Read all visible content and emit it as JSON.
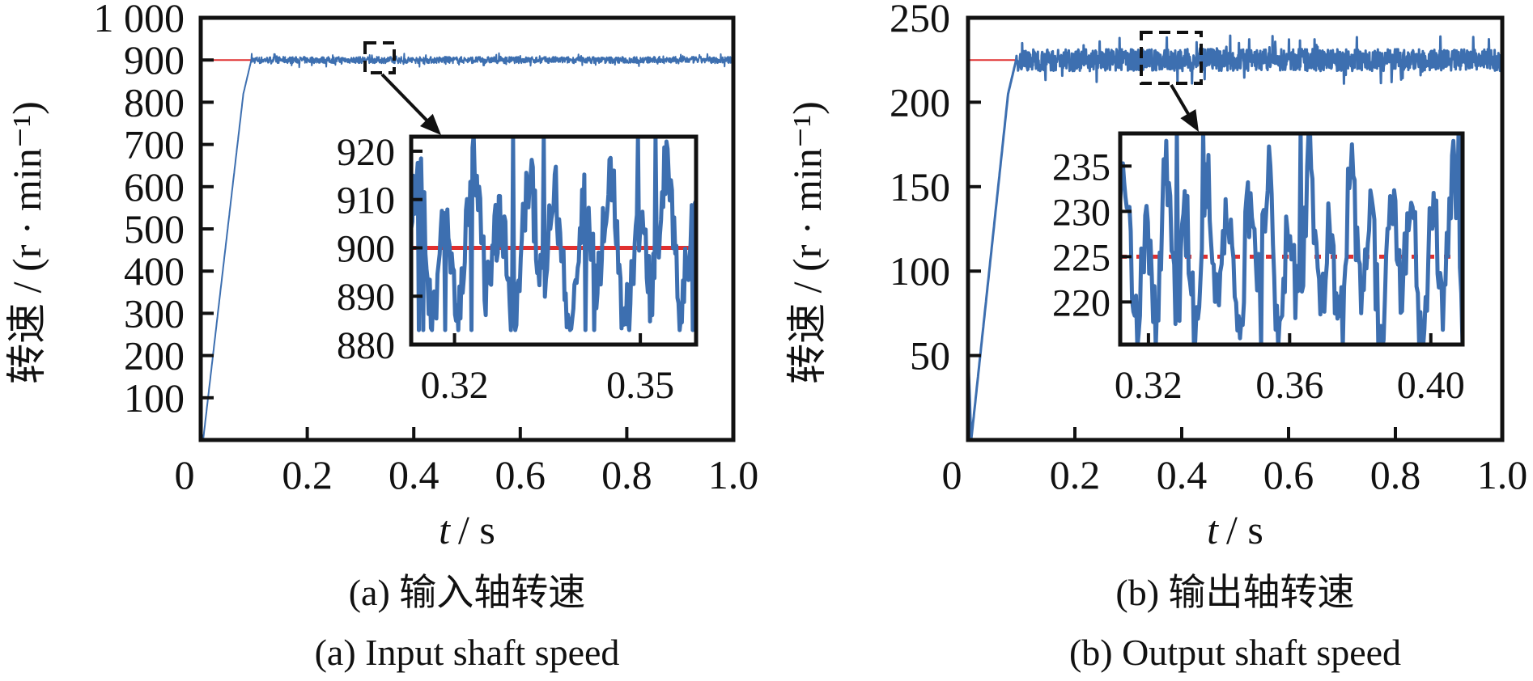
{
  "chart_data": [
    {
      "type": "line",
      "panel": "a",
      "xlabel_var": "t",
      "xlabel_unit": "/ s",
      "ylabel": "转速 / (r · min⁻¹)",
      "caption_cn": "(a)  输入轴转速",
      "caption_en": "(a)  Input shaft speed",
      "xlim": [
        0,
        1.0
      ],
      "ylim": [
        0,
        1000
      ],
      "xticks": [
        0,
        0.2,
        0.4,
        0.6,
        0.8,
        1.0
      ],
      "xtick_labels": [
        "0",
        "0.2",
        "0.4",
        "0.6",
        "0.8",
        "1.0"
      ],
      "yticks": [
        100,
        200,
        300,
        400,
        500,
        600,
        700,
        800,
        900,
        1000
      ],
      "ytick_labels": [
        "100",
        "200",
        "300",
        "400",
        "500",
        "600",
        "700",
        "800",
        "900",
        "1 000"
      ],
      "grid": false,
      "reference": {
        "value": 900,
        "color": "#e03030"
      },
      "series": {
        "color": "#3d6fb0",
        "keypoints": [
          [
            0,
            20
          ],
          [
            0.005,
            5
          ],
          [
            0.08,
            820
          ],
          [
            0.095,
            900
          ],
          [
            1.0,
            900
          ]
        ],
        "steady_fluctuation": [
          885,
          935
        ]
      },
      "zoom_region": {
        "x": [
          0.313,
          0.359
        ],
        "y": [
          880,
          923
        ]
      },
      "inset": {
        "xlim": [
          0.313,
          0.359
        ],
        "ylim": [
          880,
          923
        ],
        "xticks": [
          0.32,
          0.35
        ],
        "xtick_labels": [
          "0.32",
          "0.35"
        ],
        "yticks": [
          880,
          890,
          900,
          910,
          920
        ],
        "ytick_labels": [
          "880",
          "890",
          "900",
          "910",
          "920"
        ],
        "reference": 900,
        "fluctuation": [
          883,
          923
        ]
      }
    },
    {
      "type": "line",
      "panel": "b",
      "xlabel_var": "t",
      "xlabel_unit": "/ s",
      "ylabel": "转速 / (r · min⁻¹)",
      "caption_cn": "(b)  输出轴转速",
      "caption_en": "(b)  Output shaft speed",
      "xlim": [
        0,
        1.0
      ],
      "ylim": [
        0,
        250
      ],
      "xticks": [
        0,
        0.2,
        0.4,
        0.6,
        0.8,
        1.0
      ],
      "xtick_labels": [
        "0",
        "0.2",
        "0.4",
        "0.6",
        "0.8",
        "1.0"
      ],
      "yticks": [
        50,
        100,
        150,
        200,
        250
      ],
      "ytick_labels": [
        "50",
        "100",
        "150",
        "200",
        "250"
      ],
      "grid": false,
      "reference": {
        "value": 225,
        "color": "#e03030"
      },
      "series": {
        "color": "#3d6fb0",
        "keypoints": [
          [
            0,
            55
          ],
          [
            0.006,
            0
          ],
          [
            0.075,
            205
          ],
          [
            0.09,
            225
          ],
          [
            1.0,
            225
          ]
        ],
        "steady_fluctuation": [
          208,
          242
        ]
      },
      "zoom_region": {
        "x": [
          0.312,
          0.409
        ],
        "y": [
          215.3,
          238.6
        ]
      },
      "inset": {
        "xlim": [
          0.312,
          0.409
        ],
        "ylim": [
          215.3,
          238.6
        ],
        "xticks": [
          0.32,
          0.36,
          0.4
        ],
        "xtick_labels": [
          "0.32",
          "0.36",
          "0.40"
        ],
        "yticks": [
          220,
          225,
          230,
          235
        ],
        "ytick_labels": [
          "220",
          "225",
          "230",
          "235"
        ],
        "reference": 225,
        "fluctuation": [
          215,
          239
        ]
      }
    }
  ]
}
